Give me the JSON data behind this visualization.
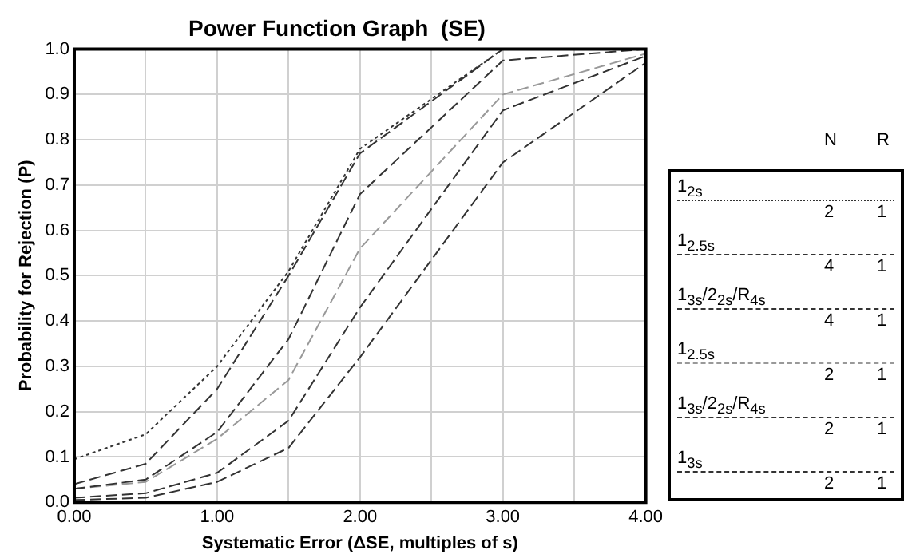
{
  "chart_data": {
    "type": "line",
    "title": "Power Function Graph  (SE)",
    "xlabel": "Systematic Error (ΔSE, multiples of s)",
    "ylabel": "Probability for Rejection (P)",
    "x": [
      0,
      0.5,
      1,
      1.5,
      2,
      3,
      4
    ],
    "series": [
      {
        "name": "1$_{2s}$",
        "color": "#333333",
        "line_style": "dotted",
        "values": [
          0.095,
          0.15,
          0.3,
          0.51,
          0.78,
          1.0,
          1.0
        ]
      },
      {
        "name": "1$_{2.5s}$",
        "color": "#333333",
        "line_style": "dashed",
        "values": [
          0.04,
          0.085,
          0.25,
          0.5,
          0.77,
          1.0,
          1.0
        ]
      },
      {
        "name": "1$_{3s}$/2$_{2s}$/R$_{4s}$",
        "color": "#333333",
        "line_style": "dashed",
        "values": [
          0.03,
          0.05,
          0.155,
          0.36,
          0.68,
          0.975,
          1.0
        ]
      },
      {
        "name": "1$_{2.5s}$",
        "color": "#999999",
        "line_style": "dashed",
        "values": [
          0.03,
          0.045,
          0.14,
          0.27,
          0.56,
          0.9,
          0.99
        ]
      },
      {
        "name": "1$_{3s}$/2$_{2s}$/R$_{4s}$",
        "color": "#333333",
        "line_style": "dashed",
        "values": [
          0.01,
          0.02,
          0.065,
          0.18,
          0.43,
          0.865,
          0.985
        ]
      },
      {
        "name": "1$_{3s}$",
        "color": "#333333",
        "line_style": "dashed",
        "values": [
          0.005,
          0.01,
          0.045,
          0.12,
          0.32,
          0.75,
          0.97
        ]
      }
    ],
    "xlim": [
      0,
      4
    ],
    "xticks": [
      {
        "value": 0,
        "label": "0.00"
      },
      {
        "value": 0.5,
        "label": null
      },
      {
        "value": 1,
        "label": "1.00"
      },
      {
        "value": 1.5,
        "label": null
      },
      {
        "value": 2,
        "label": "2.00"
      },
      {
        "value": 2.5,
        "label": null
      },
      {
        "value": 3,
        "label": "3.00"
      },
      {
        "value": 3.5,
        "label": null
      },
      {
        "value": 4,
        "label": "4.00"
      }
    ],
    "ylim": [
      0,
      1
    ],
    "yticks": [
      {
        "value": 0,
        "label": "0.0"
      },
      0.1,
      0.2,
      0.3,
      0.4,
      0.5,
      0.6,
      0.7,
      0.8,
      0.9,
      {
        "value": 1,
        "label": "1.0"
      }
    ],
    "grid": true,
    "legend": "right",
    "marker": "none",
    "annotations": [
      "N",
      "R",
      "2",
      "1",
      "4",
      "1",
      "4",
      "1",
      "2",
      "1",
      "2",
      "1",
      "2",
      "1"
    ]
  }
}
